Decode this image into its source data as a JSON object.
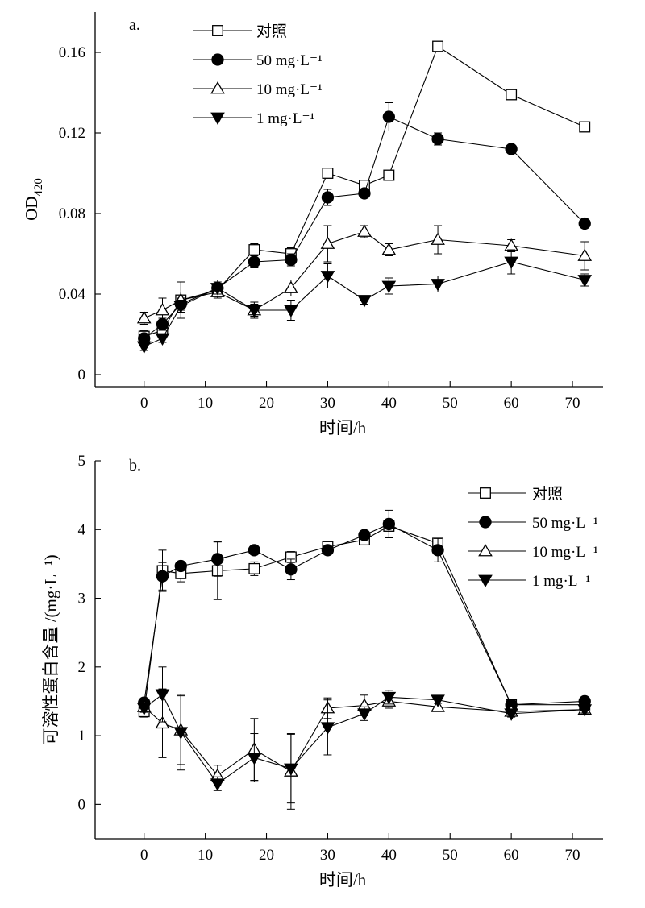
{
  "chart_data": [
    {
      "type": "line",
      "panel_label": "a.",
      "ylabel_main": "OD",
      "ylabel_sub": "420",
      "xlabel": "时间/h",
      "xlim": [
        -8,
        75
      ],
      "ylim": [
        -0.006,
        0.18
      ],
      "xticks": [
        0,
        10,
        20,
        30,
        40,
        50,
        60,
        70
      ],
      "xtick_labels": [
        "0",
        "10",
        "20",
        "30",
        "40",
        "50",
        "60",
        "70"
      ],
      "yticks": [
        0,
        0.04,
        0.08,
        0.12,
        0.16
      ],
      "ytick_labels": [
        "0",
        "0.04",
        "0.08",
        "0.12",
        "0.16"
      ],
      "legend_position": "top-center",
      "series": [
        {
          "name": "对照",
          "marker": "square-open",
          "x": [
            0,
            3,
            6,
            12,
            18,
            24,
            30,
            36,
            40,
            48,
            60,
            72
          ],
          "y": [
            0.019,
            0.022,
            0.037,
            0.042,
            0.062,
            0.06,
            0.1,
            0.094,
            0.099,
            0.163,
            0.139,
            0.123
          ],
          "err": [
            0.003,
            0.003,
            0.004,
            0.003,
            0.003,
            0.003,
            0.002,
            0.002,
            0.002,
            0.001,
            0.001,
            0.002
          ]
        },
        {
          "name": "50 mg·L⁻¹",
          "marker": "circle-filled",
          "x": [
            0,
            3,
            6,
            12,
            18,
            24,
            30,
            36,
            40,
            48,
            60,
            72
          ],
          "y": [
            0.018,
            0.025,
            0.035,
            0.043,
            0.056,
            0.057,
            0.088,
            0.09,
            0.128,
            0.117,
            0.112,
            0.075
          ],
          "err": [
            0.002,
            0.003,
            0.003,
            0.004,
            0.003,
            0.003,
            0.004,
            0.002,
            0.007,
            0.003,
            0.002,
            0.002
          ]
        },
        {
          "name": "10 mg·L⁻¹",
          "marker": "triangle-up-open",
          "x": [
            0,
            3,
            6,
            12,
            18,
            24,
            30,
            36,
            40,
            48,
            60,
            72
          ],
          "y": [
            0.028,
            0.032,
            0.037,
            0.041,
            0.032,
            0.043,
            0.065,
            0.071,
            0.062,
            0.067,
            0.064,
            0.059
          ],
          "err": [
            0.003,
            0.006,
            0.009,
            0.003,
            0.003,
            0.004,
            0.009,
            0.003,
            0.003,
            0.007,
            0.003,
            0.007
          ]
        },
        {
          "name": "1 mg·L⁻¹",
          "marker": "triangle-down-filled",
          "x": [
            0,
            3,
            6,
            12,
            18,
            24,
            30,
            36,
            40,
            48,
            60,
            72
          ],
          "y": [
            0.014,
            0.018,
            0.034,
            0.043,
            0.032,
            0.032,
            0.049,
            0.037,
            0.044,
            0.045,
            0.056,
            0.047
          ],
          "err": [
            0.002,
            0.002,
            0.003,
            0.003,
            0.004,
            0.005,
            0.006,
            0.002,
            0.004,
            0.004,
            0.006,
            0.003
          ]
        }
      ]
    },
    {
      "type": "line",
      "panel_label": "b.",
      "ylabel": "可溶性蛋白含量 /(mg·L⁻¹)",
      "xlabel": "时间/h",
      "xlim": [
        -8,
        75
      ],
      "ylim": [
        -0.5,
        5
      ],
      "xticks": [
        0,
        10,
        20,
        30,
        40,
        50,
        60,
        70
      ],
      "xtick_labels": [
        "0",
        "10",
        "20",
        "30",
        "40",
        "50",
        "60",
        "70"
      ],
      "yticks": [
        0,
        1,
        2,
        3,
        4,
        5
      ],
      "ytick_labels": [
        "0",
        "1",
        "2",
        "3",
        "4",
        "5"
      ],
      "legend_position": "top-right",
      "series": [
        {
          "name": "对照",
          "marker": "square-open",
          "x": [
            0,
            3,
            6,
            12,
            18,
            24,
            30,
            36,
            40,
            48,
            60,
            72
          ],
          "y": [
            1.35,
            3.4,
            3.36,
            3.4,
            3.43,
            3.6,
            3.75,
            3.85,
            4.05,
            3.8,
            1.45,
            1.45
          ],
          "err": [
            0.08,
            0.3,
            0.12,
            0.42,
            0.1,
            0.08,
            0.06,
            0.05,
            0.05,
            0.04,
            0.04,
            0.04
          ]
        },
        {
          "name": "50 mg·L⁻¹",
          "marker": "circle-filled",
          "x": [
            0,
            3,
            6,
            12,
            18,
            24,
            30,
            36,
            40,
            48,
            60,
            72
          ],
          "y": [
            1.48,
            3.32,
            3.47,
            3.57,
            3.7,
            3.42,
            3.7,
            3.92,
            4.08,
            3.7,
            1.45,
            1.5
          ],
          "err": [
            0.05,
            0.2,
            0.05,
            0.25,
            0.05,
            0.15,
            0.05,
            0.05,
            0.2,
            0.17,
            0.04,
            0.04
          ]
        },
        {
          "name": "10 mg·L⁻¹",
          "marker": "triangle-up-open",
          "x": [
            0,
            3,
            6,
            12,
            18,
            24,
            30,
            36,
            40,
            48,
            60,
            72
          ],
          "y": [
            1.42,
            1.18,
            1.08,
            0.42,
            0.8,
            0.48,
            1.4,
            1.44,
            1.5,
            1.42,
            1.35,
            1.38
          ],
          "err": [
            0.08,
            0.5,
            0.5,
            0.15,
            0.45,
            0.55,
            0.15,
            0.15,
            0.1,
            0.05,
            0.05,
            0.05
          ]
        },
        {
          "name": "1 mg·L⁻¹",
          "marker": "triangle-down-filled",
          "x": [
            0,
            3,
            6,
            12,
            18,
            24,
            30,
            36,
            40,
            48,
            60,
            72
          ],
          "y": [
            1.4,
            1.6,
            1.05,
            0.3,
            0.68,
            0.52,
            1.12,
            1.32,
            1.56,
            1.52,
            1.32,
            1.38
          ],
          "err": [
            0.05,
            0.4,
            0.55,
            0.1,
            0.35,
            0.5,
            0.4,
            0.1,
            0.1,
            0.05,
            0.05,
            0.05
          ]
        }
      ]
    }
  ]
}
